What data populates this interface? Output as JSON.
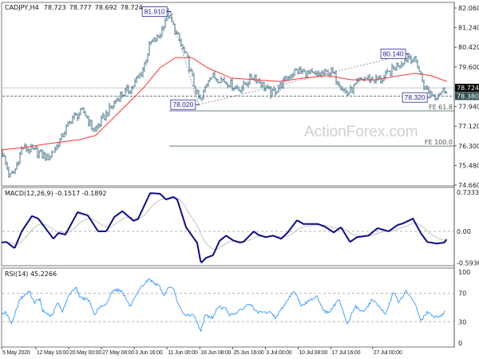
{
  "header": {
    "symbol": "CADJPY,H4",
    "open": "78.723",
    "high": "78.777",
    "low": "78.692",
    "close": "78.724"
  },
  "watermark": "ActionForex.com",
  "colors": {
    "bars": "#45738a",
    "ma": "#ff3333",
    "macd_main": "#0c0c8c",
    "macd_signal": "#c4c4c4",
    "rsi": "#3399ff",
    "annotation": "#2a2aa0",
    "current_price_box": "#000000",
    "level_box": "#2f4f4f"
  },
  "chart_data": [
    {
      "type": "ohlc-bar",
      "ylim": [
        74.66,
        82.06
      ],
      "y_ticks": [
        "82.060",
        "81.240",
        "80.420",
        "79.600",
        "77.940",
        "77.120",
        "76.300",
        "75.480",
        "74.660"
      ],
      "x_ticks": [
        {
          "label": "5 May 2020",
          "t": "2020-05-05 00:00"
        },
        {
          "label": "12 May 16:00",
          "t": "2020-05-12 16:00"
        },
        {
          "label": "20 May 00:00",
          "t": "2020-05-20 00:00"
        },
        {
          "label": "27 May 08:00",
          "t": "2020-05-27 08:00"
        },
        {
          "label": "3 Jun 16:00",
          "t": "2020-06-03 16:00"
        },
        {
          "label": "11 Jun 00:00",
          "t": "2020-06-11 00:00"
        },
        {
          "label": "18 Jun 08:00",
          "t": "2020-06-18 08:00"
        },
        {
          "label": "25 Jun 16:00",
          "t": "2020-06-25 16:00"
        },
        {
          "label": "3 Jul 00:00",
          "t": "2020-07-03 00:00"
        },
        {
          "label": "10 Jul 08:00",
          "t": "2020-07-10 08:00"
        },
        {
          "label": "17 Jul 16:00",
          "t": "2020-07-17 16:00"
        },
        {
          "label": "27 Jul 00:00",
          "t": "2020-07-27 00:00"
        }
      ],
      "price": [
        [
          "2020-05-05 00:00",
          76.13
        ],
        [
          "2020-05-06 19:00",
          74.99
        ],
        [
          "2020-05-07 22:00",
          75.23
        ],
        [
          "2020-05-09 14:00",
          76.23
        ],
        [
          "2020-05-12 17:00",
          76.06
        ],
        [
          "2020-05-15 10:00",
          75.79
        ],
        [
          "2020-05-17 12:00",
          76.33
        ],
        [
          "2020-05-20 17:00",
          77.46
        ],
        [
          "2020-05-23 10:00",
          77.73
        ],
        [
          "2020-05-25 17:00",
          76.9
        ],
        [
          "2020-05-28 18:00",
          77.73
        ],
        [
          "2020-05-31 10:00",
          78.39
        ],
        [
          "2020-06-03 02:00",
          78.73
        ],
        [
          "2020-06-05 10:00",
          79.39
        ],
        [
          "2020-06-07 05:00",
          80.56
        ],
        [
          "2020-06-09 10:00",
          80.89
        ],
        [
          "2020-06-11 02:00",
          81.89
        ],
        [
          "2020-06-13 07:00",
          80.89
        ],
        [
          "2020-06-15 14:00",
          79.89
        ],
        [
          "2020-06-17 10:00",
          78.56
        ],
        [
          "2020-06-18 14:00",
          78.13
        ],
        [
          "2020-06-20 10:00",
          79.23
        ],
        [
          "2020-06-23 14:00",
          79.06
        ],
        [
          "2020-06-27 05:00",
          78.66
        ],
        [
          "2020-06-30 10:00",
          79.23
        ],
        [
          "2020-07-04 10:00",
          78.46
        ],
        [
          "2020-07-09 17:00",
          79.46
        ],
        [
          "2020-07-14 05:00",
          79.23
        ],
        [
          "2020-07-17 18:00",
          79.39
        ],
        [
          "2020-07-21 07:00",
          78.46
        ],
        [
          "2020-07-24 22:00",
          79.13
        ],
        [
          "2020-07-29 00:00",
          79.06
        ],
        [
          "2020-08-01 10:00",
          79.66
        ],
        [
          "2020-08-04 02:00",
          80.06
        ],
        [
          "2020-08-05 22:00",
          79.73
        ],
        [
          "2020-08-07 14:00",
          78.73
        ],
        [
          "2020-08-10 00:00",
          78.39
        ],
        [
          "2020-08-12 14:00",
          78.72
        ]
      ],
      "moving_average": [
        [
          "2020-05-05 00:00",
          76.13
        ],
        [
          "2020-05-10 00:00",
          76.23
        ],
        [
          "2020-05-15 10:00",
          76.39
        ],
        [
          "2020-05-22 12:00",
          76.56
        ],
        [
          "2020-05-26 00:00",
          76.73
        ],
        [
          "2020-05-29 14:00",
          77.39
        ],
        [
          "2020-06-02 05:00",
          78.06
        ],
        [
          "2020-06-05 19:00",
          78.73
        ],
        [
          "2020-06-09 10:00",
          79.56
        ],
        [
          "2020-06-12 22:00",
          79.99
        ],
        [
          "2020-06-16 12:00",
          79.99
        ],
        [
          "2020-06-20 02:00",
          79.56
        ],
        [
          "2020-06-25 10:00",
          79.13
        ],
        [
          "2020-06-30 19:00",
          79.06
        ],
        [
          "2020-07-06 02:00",
          78.99
        ],
        [
          "2020-07-11 12:00",
          79.13
        ],
        [
          "2020-07-16 22:00",
          79.23
        ],
        [
          "2020-07-22 05:00",
          79.06
        ],
        [
          "2020-07-27 14:00",
          79.06
        ],
        [
          "2020-08-01 22:00",
          79.23
        ],
        [
          "2020-08-05 12:00",
          79.33
        ],
        [
          "2020-08-09 02:00",
          79.23
        ],
        [
          "2020-08-12 14:00",
          78.99
        ]
      ],
      "annotations": [
        {
          "label": "81.910",
          "t": "2020-06-11 17:00",
          "price": 81.91
        },
        {
          "label": "78.020",
          "t": "2020-06-18 02:00",
          "price": 78.02
        },
        {
          "label": "80.140",
          "t": "2020-08-04 02:00",
          "price": 80.14
        },
        {
          "label": "78.320",
          "t": "2020-08-08 22:00",
          "price": 78.32
        }
      ],
      "trend_lines": [
        [
          0,
          1
        ],
        [
          1,
          2
        ]
      ],
      "fib_levels": [
        {
          "label": "FE 61.8",
          "price": 77.76,
          "start": "2020-06-11 12:00"
        },
        {
          "label": "FE 100.0",
          "price": 76.29,
          "start": "2020-06-11 12:00"
        }
      ],
      "current_price": {
        "label": "78.724",
        "price": 78.724
      },
      "level_line": {
        "label": "78.380",
        "price": 78.38
      }
    },
    {
      "type": "line",
      "title": "MACD(12,26,9) -0.1517 -0.1892",
      "y_ticks": [
        {
          "label": "0.7333",
          "v": 0.7333
        },
        {
          "label": "0.00",
          "v": 0
        },
        {
          "label": "-0.5936",
          "v": -0.5936
        }
      ],
      "main": [
        [
          "2020-05-05 00:00",
          -0.21
        ],
        [
          "2020-05-06 02:00",
          -0.2
        ],
        [
          "2020-05-07 22:00",
          -0.32
        ],
        [
          "2020-05-09 12:00",
          0.0
        ],
        [
          "2020-05-11 19:00",
          0.29
        ],
        [
          "2020-05-13 05:00",
          0.24
        ],
        [
          "2020-05-16 14:00",
          -0.14
        ],
        [
          "2020-05-17 17:00",
          -0.03
        ],
        [
          "2020-05-19 07:00",
          -0.06
        ],
        [
          "2020-05-22 00:00",
          0.36
        ],
        [
          "2020-05-24 07:00",
          0.3
        ],
        [
          "2020-05-26 14:00",
          0.0
        ],
        [
          "2020-05-28 10:00",
          0.0
        ],
        [
          "2020-05-30 05:00",
          0.27
        ],
        [
          "2020-06-01 00:00",
          0.38
        ],
        [
          "2020-06-03 12:00",
          0.2
        ],
        [
          "2020-06-04 12:00",
          0.23
        ],
        [
          "2020-06-07 05:00",
          0.72
        ],
        [
          "2020-06-09 10:00",
          0.71
        ],
        [
          "2020-06-10 19:00",
          0.6
        ],
        [
          "2020-06-12 10:00",
          0.65
        ],
        [
          "2020-06-13 07:00",
          0.6
        ],
        [
          "2020-06-15 06:00",
          0.08
        ],
        [
          "2020-06-17 18:00",
          -0.22
        ],
        [
          "2020-06-18 14:00",
          -0.6
        ],
        [
          "2020-06-19 17:00",
          -0.5
        ],
        [
          "2020-06-21 07:00",
          -0.45
        ],
        [
          "2020-06-22 18:00",
          -0.18
        ],
        [
          "2020-06-24 05:00",
          -0.08
        ],
        [
          "2020-06-25 19:00",
          -0.17
        ],
        [
          "2020-06-27 05:00",
          -0.21
        ],
        [
          "2020-06-28 02:00",
          -0.2
        ],
        [
          "2020-06-30 10:00",
          0.0
        ],
        [
          "2020-07-01 07:00",
          -0.06
        ],
        [
          "2020-07-03 02:00",
          -0.11
        ],
        [
          "2020-07-04 17:00",
          -0.08
        ],
        [
          "2020-07-06 12:00",
          -0.14
        ],
        [
          "2020-07-07 22:00",
          -0.03
        ],
        [
          "2020-07-10 02:00",
          0.21
        ],
        [
          "2020-07-11 12:00",
          0.14
        ],
        [
          "2020-07-14 17:00",
          0.14
        ],
        [
          "2020-07-16 07:00",
          0.09
        ],
        [
          "2020-07-18 07:00",
          -0.02
        ],
        [
          "2020-07-19 22:00",
          0.08
        ],
        [
          "2020-07-21 22:00",
          -0.2
        ],
        [
          "2020-07-23 12:00",
          -0.11
        ],
        [
          "2020-07-26 02:00",
          -0.08
        ],
        [
          "2020-07-28 02:00",
          0.06
        ],
        [
          "2020-07-30 14:00",
          0.0
        ],
        [
          "2020-08-01 14:00",
          0.12
        ],
        [
          "2020-08-02 19:00",
          0.15
        ],
        [
          "2020-08-05 00:00",
          0.24
        ],
        [
          "2020-08-06 18:00",
          -0.03
        ],
        [
          "2020-08-08 05:00",
          -0.2
        ],
        [
          "2020-08-10 07:00",
          -0.23
        ],
        [
          "2020-08-12 02:00",
          -0.21
        ],
        [
          "2020-08-12 12:00",
          -0.15
        ]
      ],
      "main_last": -0.1517,
      "signal_last": -0.1892
    },
    {
      "type": "line",
      "title": "RSI(14) 45.2266",
      "ylim": [
        0,
        100
      ],
      "y_ticks": [
        {
          "label": "100",
          "v": 100
        },
        {
          "label": "70",
          "v": 70
        },
        {
          "label": "30",
          "v": 30
        },
        {
          "label": "0",
          "v": 0
        }
      ],
      "levels": [
        70,
        30
      ],
      "values": [
        [
          "2020-05-05 00:00",
          41
        ],
        [
          "2020-05-05 21:00",
          43
        ],
        [
          "2020-05-07 07:00",
          28
        ],
        [
          "2020-05-09 02:00",
          62
        ],
        [
          "2020-05-11 06:00",
          73
        ],
        [
          "2020-05-12 07:00",
          57
        ],
        [
          "2020-05-13 14:00",
          62
        ],
        [
          "2020-05-14 02:00",
          46
        ],
        [
          "2020-05-16 06:00",
          37
        ],
        [
          "2020-05-17 12:00",
          57
        ],
        [
          "2020-05-18 14:00",
          45
        ],
        [
          "2020-05-20 05:00",
          69
        ],
        [
          "2020-05-21 14:00",
          79
        ],
        [
          "2020-05-22 12:00",
          65
        ],
        [
          "2020-05-24 14:00",
          60
        ],
        [
          "2020-05-25 17:00",
          40
        ],
        [
          "2020-05-27 00:00",
          51
        ],
        [
          "2020-05-28 05:00",
          52
        ],
        [
          "2020-05-30 00:00",
          76
        ],
        [
          "2020-06-01 00:00",
          73
        ],
        [
          "2020-06-02 18:00",
          51
        ],
        [
          "2020-06-05 06:00",
          79
        ],
        [
          "2020-06-07 00:00",
          90
        ],
        [
          "2020-06-09 10:00",
          79
        ],
        [
          "2020-06-10 06:00",
          67
        ],
        [
          "2020-06-11 12:00",
          80
        ],
        [
          "2020-06-12 14:00",
          74
        ],
        [
          "2020-06-13 12:00",
          54
        ],
        [
          "2020-06-14 17:00",
          40
        ],
        [
          "2020-06-17 00:00",
          39
        ],
        [
          "2020-06-18 14:00",
          17
        ],
        [
          "2020-06-19 12:00",
          40
        ],
        [
          "2020-06-21 07:00",
          35
        ],
        [
          "2020-06-22 10:00",
          52
        ],
        [
          "2020-06-24 05:00",
          48
        ],
        [
          "2020-06-25 02:00",
          39
        ],
        [
          "2020-06-27 05:00",
          45
        ],
        [
          "2020-06-29 12:00",
          56
        ],
        [
          "2020-07-01 02:00",
          43
        ],
        [
          "2020-07-04 10:00",
          43
        ],
        [
          "2020-07-05 06:00",
          35
        ],
        [
          "2020-07-07 10:00",
          56
        ],
        [
          "2020-07-09 10:00",
          74
        ],
        [
          "2020-07-11 02:00",
          52
        ],
        [
          "2020-07-14 12:00",
          67
        ],
        [
          "2020-07-16 00:00",
          45
        ],
        [
          "2020-07-17 10:00",
          43
        ],
        [
          "2020-07-19 12:00",
          63
        ],
        [
          "2020-07-21 07:00",
          26
        ],
        [
          "2020-07-23 02:00",
          52
        ],
        [
          "2020-07-24 22:00",
          43
        ],
        [
          "2020-07-27 00:00",
          62
        ],
        [
          "2020-07-29 22:00",
          40
        ],
        [
          "2020-07-31 17:00",
          73
        ],
        [
          "2020-08-01 22:00",
          57
        ],
        [
          "2020-08-03 10:00",
          73
        ],
        [
          "2020-08-05 12:00",
          56
        ],
        [
          "2020-08-06 18:00",
          31
        ],
        [
          "2020-08-08 05:00",
          43
        ],
        [
          "2020-08-10 00:00",
          37
        ],
        [
          "2020-08-11 10:00",
          39
        ],
        [
          "2020-08-12 07:00",
          45.23
        ]
      ]
    }
  ]
}
